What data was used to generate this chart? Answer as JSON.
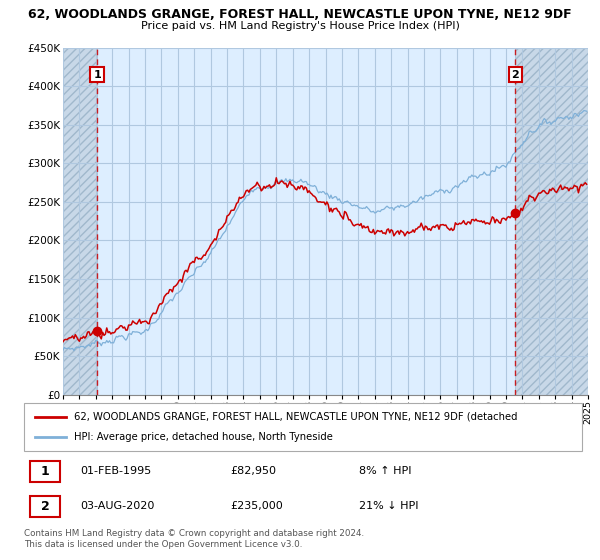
{
  "title_line1": "62, WOODLANDS GRANGE, FOREST HALL, NEWCASTLE UPON TYNE, NE12 9DF",
  "title_line2": "Price paid vs. HM Land Registry's House Price Index (HPI)",
  "ylim": [
    0,
    450000
  ],
  "ytick_vals": [
    0,
    50000,
    100000,
    150000,
    200000,
    250000,
    300000,
    350000,
    400000,
    450000
  ],
  "ytick_labels": [
    "£0",
    "£50K",
    "£100K",
    "£150K",
    "£200K",
    "£250K",
    "£300K",
    "£350K",
    "£400K",
    "£450K"
  ],
  "xmin": 1993,
  "xmax": 2025,
  "sale1_date": 1995.08,
  "sale1_price": 82950,
  "sale2_date": 2020.58,
  "sale2_price": 235000,
  "property_color": "#cc0000",
  "hpi_color": "#7fb0d8",
  "bg_main_color": "#ddeeff",
  "bg_hatch_color": "#c8d8e8",
  "grid_color": "#b0c8e0",
  "legend_line1": "62, WOODLANDS GRANGE, FOREST HALL, NEWCASTLE UPON TYNE, NE12 9DF (detached",
  "legend_line2": "HPI: Average price, detached house, North Tyneside",
  "annotation1_date": "01-FEB-1995",
  "annotation1_price": "£82,950",
  "annotation1_hpi": "8% ↑ HPI",
  "annotation2_date": "03-AUG-2020",
  "annotation2_price": "£235,000",
  "annotation2_hpi": "21% ↓ HPI",
  "footer": "Contains HM Land Registry data © Crown copyright and database right 2024.\nThis data is licensed under the Open Government Licence v3.0."
}
